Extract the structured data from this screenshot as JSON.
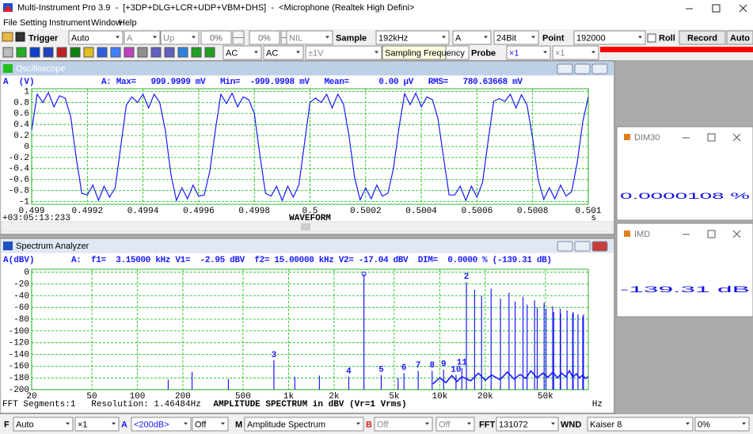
{
  "window_title": "Multi-Instrument Pro 3.9  -  [+3DP+DLG+LCR+UDP+VBM+DHS]  -  <Microphone (Realtek High Defini>",
  "menu": [
    "File",
    "Setting",
    "Instrument",
    "Window",
    "Help"
  ],
  "toolbar1": [
    "Trigger",
    "Auto",
    "A",
    "Up",
    "0%",
    "0%",
    "NIL",
    "Sample",
    "192kHz",
    "A",
    "24Bit",
    "Point",
    "192000",
    "Roll",
    "Record",
    "Auto"
  ],
  "toolbar2": [
    "AC",
    "AC",
    "±1V",
    "Sampling Frequency",
    "Probe",
    "×1",
    "×1"
  ],
  "bottom_toolbar": [
    "F",
    "Auto",
    "×1",
    "A",
    "<200dB>",
    "Off",
    "M",
    "Amplitude Spectrum",
    "B",
    "Off",
    "Off",
    "FFT",
    "131072",
    "WND",
    "Kaiser 8",
    "0%"
  ],
  "meters": [
    {
      "title": "DIM30",
      "reading": "0.0000108 %"
    },
    {
      "title": "IMD",
      "reading": "-139.31 dB"
    }
  ],
  "chart_data": [
    {
      "type": "line",
      "title": "Oscilloscope",
      "y_label": "A  (V)",
      "readout": "A: Max=   999.9999 mV   Min=  -999.9998 mV   Mean=      0.00 µV   RMS=   780.63668 mV",
      "x_label": "WAVEFORM",
      "x_unit": "s",
      "time_label": "+03:05:13:233",
      "color": "#1a1aff",
      "grid": true,
      "xlim": [
        0.499,
        0.501
      ],
      "ylim": [
        -1.05,
        1.05
      ],
      "xticks": [
        0.499,
        0.4992,
        0.4994,
        0.4996,
        0.4998,
        0.5,
        0.5002,
        0.5004,
        0.5006,
        0.5008,
        0.501
      ],
      "yticks": [
        1,
        0.8,
        0.6,
        0.4,
        0.2,
        0,
        -0.2,
        -0.4,
        -0.6,
        -0.8,
        -1
      ],
      "x": [
        0.499,
        0.49902,
        0.49904,
        0.49906,
        0.49908,
        0.4991,
        0.49912,
        0.49914,
        0.49916,
        0.49918,
        0.4992,
        0.49922,
        0.49924,
        0.49926,
        0.49928,
        0.4993,
        0.49932,
        0.49934,
        0.49936,
        0.49938,
        0.4994,
        0.49942,
        0.49944,
        0.49946,
        0.49948,
        0.4995,
        0.49952,
        0.49954,
        0.49956,
        0.49958,
        0.4996,
        0.49962,
        0.49964,
        0.49966,
        0.49968,
        0.4997,
        0.49972,
        0.49974,
        0.49976,
        0.49978,
        0.4998,
        0.49982,
        0.49984,
        0.49986,
        0.49988,
        0.4999,
        0.49992,
        0.49994,
        0.49996,
        0.49998,
        0.5,
        0.50002,
        0.50004,
        0.50006,
        0.50008,
        0.5001,
        0.50012,
        0.50014,
        0.50016,
        0.50018,
        0.5002,
        0.50022,
        0.50024,
        0.50026,
        0.50028,
        0.5003,
        0.50032,
        0.50034,
        0.50036,
        0.50038,
        0.5004,
        0.50042,
        0.50044,
        0.50046,
        0.50048,
        0.5005,
        0.50052,
        0.50054,
        0.50056,
        0.50058,
        0.5006,
        0.50062,
        0.50064,
        0.50066,
        0.50068,
        0.5007,
        0.50072,
        0.50074,
        0.50076,
        0.50078,
        0.5008,
        0.50082,
        0.50084,
        0.50086,
        0.50088,
        0.5009,
        0.50092,
        0.50094,
        0.50096,
        0.50098,
        0.501
      ],
      "values": [
        0.3,
        0.95,
        0.8,
        0.98,
        0.72,
        0.92,
        0.88,
        0.55,
        -0.2,
        -0.85,
        -0.88,
        -0.7,
        -0.98,
        -0.72,
        -0.92,
        -0.75,
        0.0,
        0.75,
        0.9,
        0.8,
        0.95,
        0.7,
        0.95,
        0.8,
        0.3,
        -0.5,
        -0.98,
        -0.75,
        -0.95,
        -0.7,
        -0.9,
        -0.88,
        -0.45,
        0.3,
        0.95,
        0.78,
        0.97,
        0.72,
        0.9,
        0.85,
        0.6,
        -0.15,
        -0.85,
        -0.9,
        -0.72,
        -0.98,
        -0.72,
        -0.92,
        -0.7,
        0.05,
        0.8,
        0.88,
        0.8,
        0.95,
        0.7,
        0.95,
        0.78,
        0.2,
        -0.55,
        -0.97,
        -0.75,
        -0.95,
        -0.7,
        -0.9,
        -0.85,
        -0.4,
        0.35,
        0.96,
        0.76,
        0.97,
        0.72,
        0.9,
        0.85,
        0.5,
        -0.2,
        -0.88,
        -0.88,
        -0.72,
        -0.98,
        -0.72,
        -0.92,
        -0.65,
        0.1,
        0.82,
        0.87,
        0.82,
        0.95,
        0.7,
        0.94,
        0.75,
        0.15,
        -0.6,
        -0.96,
        -0.75,
        -0.95,
        -0.7,
        -0.9,
        -0.82,
        -0.3,
        0.45,
        0.9
      ]
    },
    {
      "type": "stem",
      "title": "Spectrum Analyzer",
      "y_label": "A(dBV)",
      "readout": "A:  f1=  3.15000 kHz V1=  -2.95 dBV  f2= 15.00000 kHz V2= -17.04 dBV  DIM=  0.0000 % (-139.31 dB)",
      "x_label": "AMPLITUDE SPECTRUM in dBV (Vr=1 Vrms)",
      "x_unit": "Hz",
      "footer": "FFT Segments:1   Resolution: 1.46484Hz",
      "color": "#1a1aff",
      "label_color": "#1a1aff",
      "grid": true,
      "log_x": true,
      "xlim": [
        20,
        96000
      ],
      "ylim": [
        -200,
        5
      ],
      "xticks": [
        20,
        50,
        100,
        200,
        500,
        {
          "value": 1000,
          "label": "1k"
        },
        {
          "value": 2000,
          "label": "2k"
        },
        {
          "value": 5000,
          "label": "5k"
        },
        {
          "value": 10000,
          "label": "10k"
        },
        {
          "value": 20000,
          "label": "20k"
        },
        {
          "value": 50000,
          "label": "50k"
        }
      ],
      "yticks": [
        0,
        -20,
        -40,
        -60,
        -80,
        -100,
        -120,
        -140,
        -160,
        -180,
        -200
      ],
      "x": [
        160,
        230,
        400,
        800,
        1100,
        1600,
        2500,
        3150,
        4100,
        5300,
        5800,
        7200,
        8900,
        10600,
        12800,
        14000,
        15000,
        17000,
        18900,
        21850,
        25200,
        28700,
        31500,
        35500,
        37800,
        42350,
        44100,
        49000,
        50400,
        55800,
        56700,
        62600,
        63000,
        69450,
        75600,
        76300,
        82000,
        88200,
        89200
      ],
      "values": [
        -183,
        -170,
        -182,
        -150,
        -178,
        -176,
        -178,
        -3,
        -175,
        -180,
        -172,
        -168,
        -168,
        -166,
        -175,
        -163,
        -17,
        -30,
        -40,
        -28,
        -45,
        -35,
        -50,
        -42,
        -55,
        -48,
        -60,
        -52,
        -62,
        -58,
        -68,
        -62,
        -70,
        -65,
        -70,
        -68,
        -72,
        -75,
        -72
      ],
      "labels": [
        null,
        null,
        null,
        "3",
        null,
        null,
        "4",
        null,
        "5",
        null,
        "6",
        "7",
        "8",
        "9",
        "10",
        "11",
        "2",
        null,
        null,
        null,
        null,
        null,
        null,
        null,
        null,
        null,
        null,
        null,
        null,
        null,
        null,
        null,
        null,
        null,
        null,
        null,
        null,
        null,
        null
      ],
      "noise": {
        "x": [
          9000,
          10000,
          11000,
          12000,
          13000,
          14000,
          16000,
          18000,
          20000,
          22000,
          25000,
          28000,
          31000,
          34000,
          37000,
          40000,
          44000,
          48000,
          52000,
          56000,
          60000,
          64000,
          68000,
          72000,
          76000,
          80000,
          84000,
          88000,
          92000,
          96000
        ],
        "values": [
          -190,
          -180,
          -188,
          -176,
          -186,
          -178,
          -185,
          -172,
          -184,
          -175,
          -183,
          -170,
          -182,
          -174,
          -181,
          -168,
          -180,
          -172,
          -179,
          -170,
          -180,
          -172,
          -178,
          -168,
          -179,
          -173,
          -180,
          -175,
          -181,
          -178
        ]
      }
    }
  ]
}
